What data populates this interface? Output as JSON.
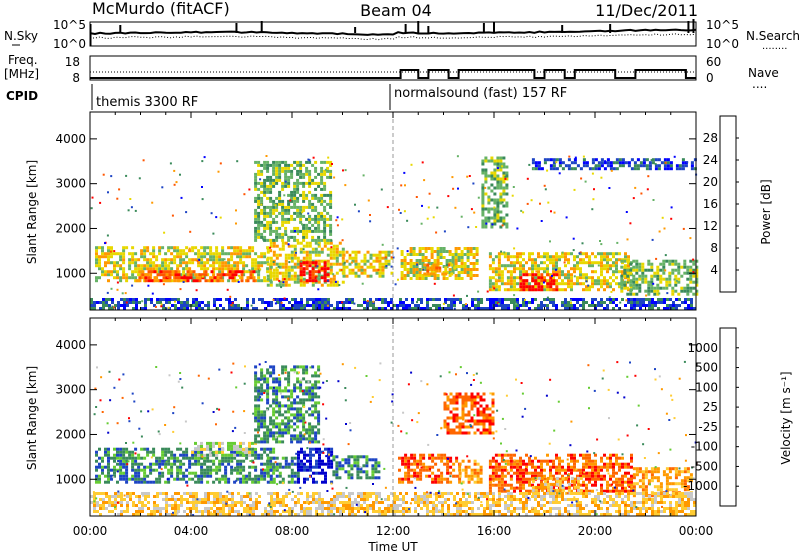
{
  "header": {
    "station": "McMurdo (fitACF)",
    "beam": "Beam 04",
    "date": "11/Dec/2011"
  },
  "panels": {
    "sky": {
      "left_label": "N.Sky",
      "ytick_top": "10^5",
      "ytick_bottom": "10^0",
      "right_ytick_top": "10^5",
      "right_ytick_bottom": "10^0",
      "right_label": "N.Search",
      "right_legend_marker": "........"
    },
    "freq": {
      "left_label_1": "Freq.",
      "left_label_2": "[MHz]",
      "ytick_top": "18",
      "ytick_bottom": "8",
      "right_ytick_top": "60",
      "right_ytick_bottom": "0",
      "right_label": "Nave",
      "right_legend_marker": "...."
    },
    "cpid": {
      "label": "CPID",
      "mode_1": "themis 3300 RF",
      "mode_2": "normalsound (fast) 157 RF"
    }
  },
  "colors": {
    "power": [
      "#0000ff",
      "#1d44c4",
      "#3a8a5a",
      "#66b266",
      "#e8d800",
      "#ff9900",
      "#ff5500",
      "#ff0000"
    ],
    "velocity": [
      "#ff0000",
      "#ff6600",
      "#ff9900",
      "#ffcc33",
      "#c8c8c8",
      "#66cc33",
      "#3a8a5a",
      "#1d44c4",
      "#0000cc"
    ]
  },
  "chart_data": [
    {
      "type": "heatmap",
      "ylabel": "Slant Range [km]",
      "ylim": [
        180,
        4600
      ],
      "yticks": [
        "1000",
        "2000",
        "3000",
        "4000"
      ],
      "xlim_ut_hours": [
        0,
        24
      ],
      "xticks": [],
      "colorbar": {
        "label": "Power [dB]",
        "ticks": [
          "4",
          "8",
          "12",
          "16",
          "20",
          "24",
          "28"
        ],
        "range": [
          0,
          32
        ]
      },
      "regions": [
        {
          "t0": 0.2,
          "t1": 7.2,
          "r0": 800,
          "r1": 1600,
          "level": 4
        },
        {
          "t0": 1.8,
          "t1": 6.5,
          "r0": 800,
          "r1": 1050,
          "level": 6
        },
        {
          "t0": 7.0,
          "t1": 10.0,
          "r0": 700,
          "r1": 1700,
          "level": 4
        },
        {
          "t0": 8.3,
          "t1": 9.4,
          "r0": 800,
          "r1": 1250,
          "level": 7
        },
        {
          "t0": 10.0,
          "t1": 12.0,
          "r0": 900,
          "r1": 1500,
          "level": 4
        },
        {
          "t0": 12.3,
          "t1": 15.3,
          "r0": 850,
          "r1": 1550,
          "level": 4
        },
        {
          "t0": 13.2,
          "t1": 14.4,
          "r0": 950,
          "r1": 1200,
          "level": 5
        },
        {
          "t0": 15.8,
          "t1": 21.5,
          "r0": 600,
          "r1": 1450,
          "level": 4
        },
        {
          "t0": 17.0,
          "t1": 18.5,
          "r0": 600,
          "r1": 1000,
          "level": 7
        },
        {
          "t0": 21.0,
          "t1": 24.0,
          "r0": 500,
          "r1": 1300,
          "level": 3
        },
        {
          "t0": 6.5,
          "t1": 9.5,
          "r0": 1700,
          "r1": 3500,
          "level": 3
        },
        {
          "t0": 15.5,
          "t1": 16.5,
          "r0": 2000,
          "r1": 3600,
          "level": 3
        },
        {
          "t0": 17.5,
          "t1": 24.0,
          "r0": 3300,
          "r1": 3550,
          "level": 1
        },
        {
          "t0": 0.0,
          "t1": 24.0,
          "r0": 180,
          "r1": 420,
          "level": 1
        }
      ]
    },
    {
      "type": "heatmap",
      "ylabel": "Slant Range [km]",
      "ylim": [
        180,
        4600
      ],
      "yticks": [
        "1000",
        "2000",
        "3000",
        "4000"
      ],
      "xlim_ut_hours": [
        0,
        24
      ],
      "xlabel": "Time UT",
      "xticks": [
        "00:00",
        "04:00",
        "08:00",
        "12:00",
        "16:00",
        "20:00",
        "00:00"
      ],
      "colorbar": {
        "label": "Velocity [m s⁻¹]",
        "ticks": [
          "1000",
          "500",
          "100",
          "25",
          "-25",
          "-100",
          "-500",
          "-1000"
        ],
        "range": [
          -1200,
          1200
        ]
      },
      "regions": [
        {
          "t0": 0.2,
          "t1": 7.3,
          "r0": 900,
          "r1": 1700,
          "level": 6
        },
        {
          "t0": 4.0,
          "t1": 6.5,
          "r0": 1500,
          "r1": 1800,
          "level": 4
        },
        {
          "t0": 7.0,
          "t1": 8.3,
          "r0": 900,
          "r1": 1500,
          "level": 6
        },
        {
          "t0": 8.2,
          "t1": 9.6,
          "r0": 900,
          "r1": 1650,
          "level": 8
        },
        {
          "t0": 9.6,
          "t1": 11.5,
          "r0": 1000,
          "r1": 1500,
          "level": 6
        },
        {
          "t0": 12.2,
          "t1": 14.6,
          "r0": 900,
          "r1": 1550,
          "level": 1
        },
        {
          "t0": 14.6,
          "t1": 15.5,
          "r0": 900,
          "r1": 1400,
          "level": 2
        },
        {
          "t0": 15.8,
          "t1": 21.5,
          "r0": 700,
          "r1": 1550,
          "level": 1
        },
        {
          "t0": 17.5,
          "t1": 19.5,
          "r0": 650,
          "r1": 1000,
          "level": 3
        },
        {
          "t0": 21.5,
          "t1": 23.8,
          "r0": 600,
          "r1": 1250,
          "level": 2
        },
        {
          "t0": 0.0,
          "t1": 24.0,
          "r0": 180,
          "r1": 650,
          "level": 3
        },
        {
          "t0": 6.5,
          "t1": 9.0,
          "r0": 1800,
          "r1": 3500,
          "level": 6
        },
        {
          "t0": 14.0,
          "t1": 16.0,
          "r0": 2000,
          "r1": 2900,
          "level": 1
        }
      ]
    }
  ]
}
